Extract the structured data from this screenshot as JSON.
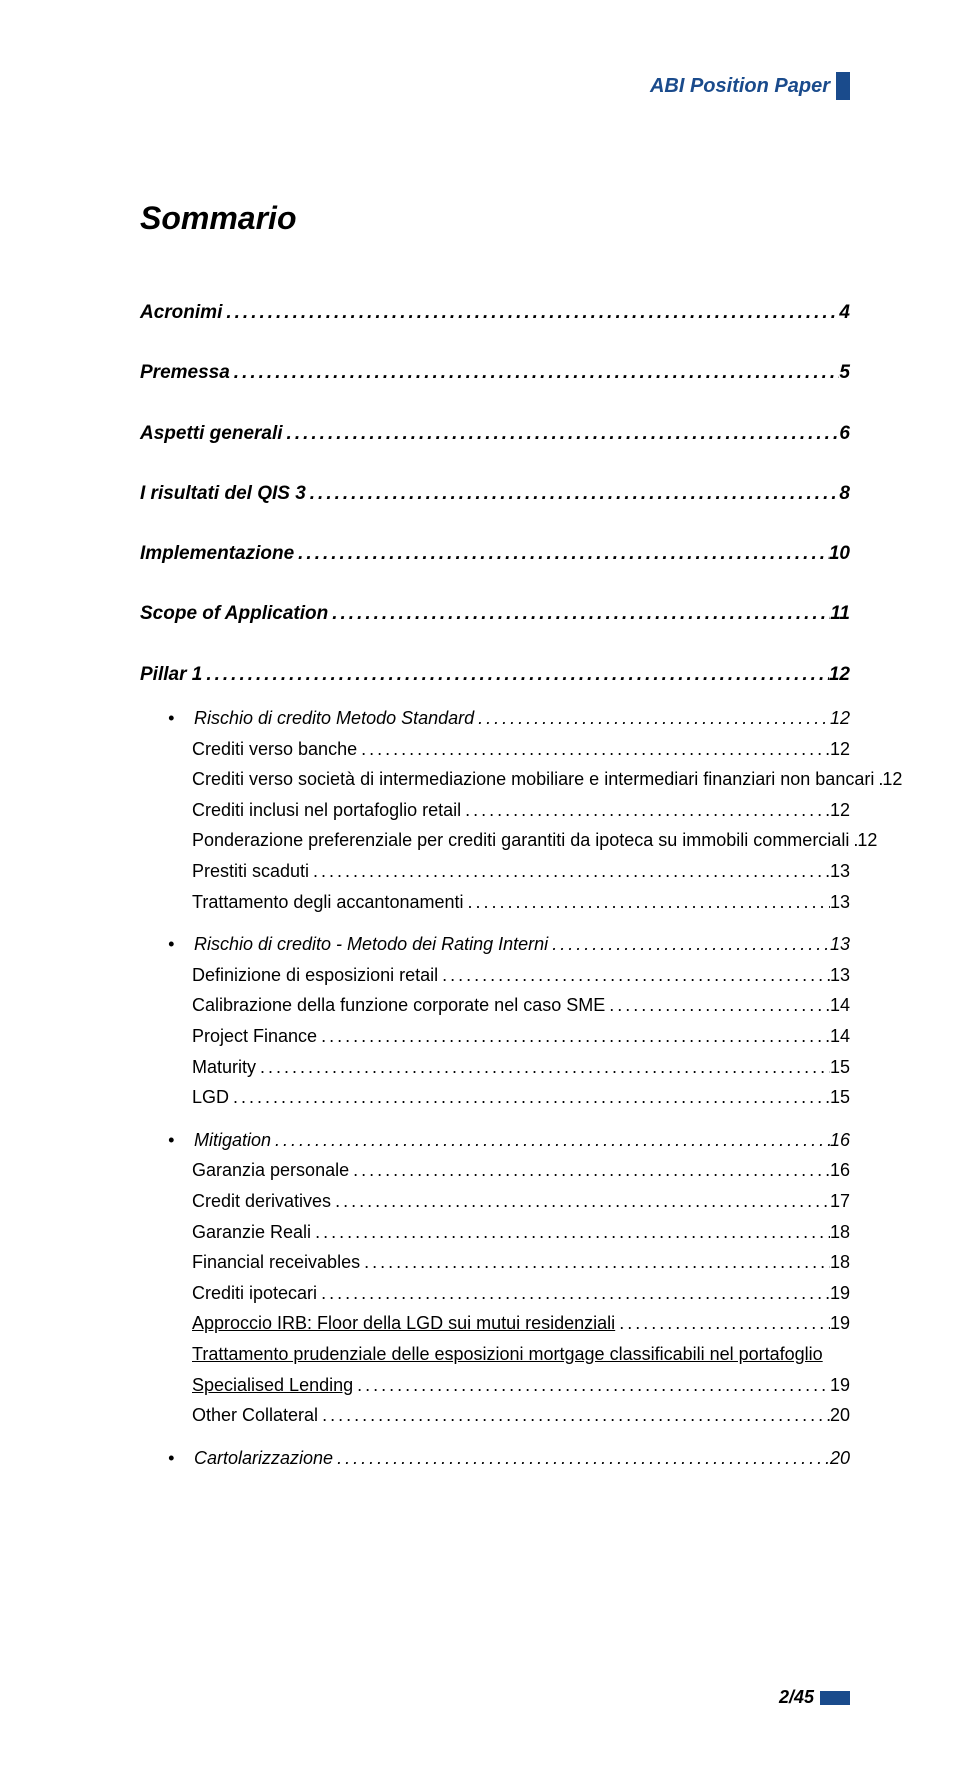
{
  "header": {
    "text": "ABI Position Paper",
    "marker_color": "#1a4b8c",
    "text_color": "#1a4b8c"
  },
  "title": "Sommario",
  "toc": [
    {
      "type": "level1",
      "label": "Acronimi",
      "page": "4"
    },
    {
      "type": "level1",
      "label": "Premessa",
      "page": "5"
    },
    {
      "type": "level1",
      "label": "Aspetti generali",
      "page": "6"
    },
    {
      "type": "level1",
      "label": "I risultati del QIS 3",
      "page": "8"
    },
    {
      "type": "level1",
      "label": "Implementazione",
      "page": "10"
    },
    {
      "type": "level1",
      "label": "Scope of Application",
      "page": "11"
    },
    {
      "type": "level1",
      "label": "Pillar 1",
      "page": "12"
    },
    {
      "type": "bullet",
      "label": "Rischio di credito Metodo Standard",
      "page": "12"
    },
    {
      "type": "entry",
      "label": "Crediti verso banche",
      "page": "12"
    },
    {
      "type": "entry",
      "label": "Crediti verso società di intermediazione mobiliare e intermediari finanziari non bancari",
      "page": "12"
    },
    {
      "type": "entry",
      "label": "Crediti inclusi nel portafoglio retail",
      "page": "12"
    },
    {
      "type": "entry",
      "label": "Ponderazione preferenziale per crediti garantiti da ipoteca su immobili commerciali",
      "page": "12"
    },
    {
      "type": "entry",
      "label": "Prestiti scaduti",
      "page": "13"
    },
    {
      "type": "entry",
      "label": "Trattamento degli accantonamenti",
      "page": "13"
    },
    {
      "type": "bullet",
      "label": "Rischio di credito  - Metodo dei Rating Interni",
      "page": "13"
    },
    {
      "type": "entry",
      "label": "Definizione di esposizioni retail",
      "page": "13"
    },
    {
      "type": "entry",
      "label": "Calibrazione della funzione corporate nel caso SME",
      "page": "14"
    },
    {
      "type": "entry",
      "label": "Project Finance",
      "page": "14"
    },
    {
      "type": "entry",
      "label": "Maturity",
      "page": "15"
    },
    {
      "type": "entry",
      "label": "LGD",
      "page": "15"
    },
    {
      "type": "bullet",
      "label": "Mitigation",
      "page": "16"
    },
    {
      "type": "entry",
      "label": "Garanzia personale",
      "page": "16"
    },
    {
      "type": "entry",
      "label": "Credit derivatives",
      "page": "17"
    },
    {
      "type": "entry",
      "label": "Garanzie Reali",
      "page": "18"
    },
    {
      "type": "entry",
      "label": "Financial receivables",
      "page": "18"
    },
    {
      "type": "entry",
      "label": "Crediti ipotecari",
      "page": "19"
    },
    {
      "type": "entry",
      "label": "Approccio IRB: Floor della LGD sui mutui residenziali",
      "page": "19",
      "underlined": true
    },
    {
      "type": "entry_ml",
      "line1": "Trattamento prudenziale delle esposizioni mortgage classificabili nel portafoglio",
      "line2": "Specialised Lending",
      "page": "19",
      "underlined": true
    },
    {
      "type": "entry",
      "label": "Other Collateral",
      "page": "20"
    },
    {
      "type": "bullet",
      "label": "Cartolarizzazione",
      "page": "20"
    }
  ],
  "footer": {
    "text": "2/45",
    "marker_color": "#1a4b8c"
  },
  "colors": {
    "link_blue": "#1a4b8c",
    "text": "#000000",
    "background": "#ffffff"
  }
}
